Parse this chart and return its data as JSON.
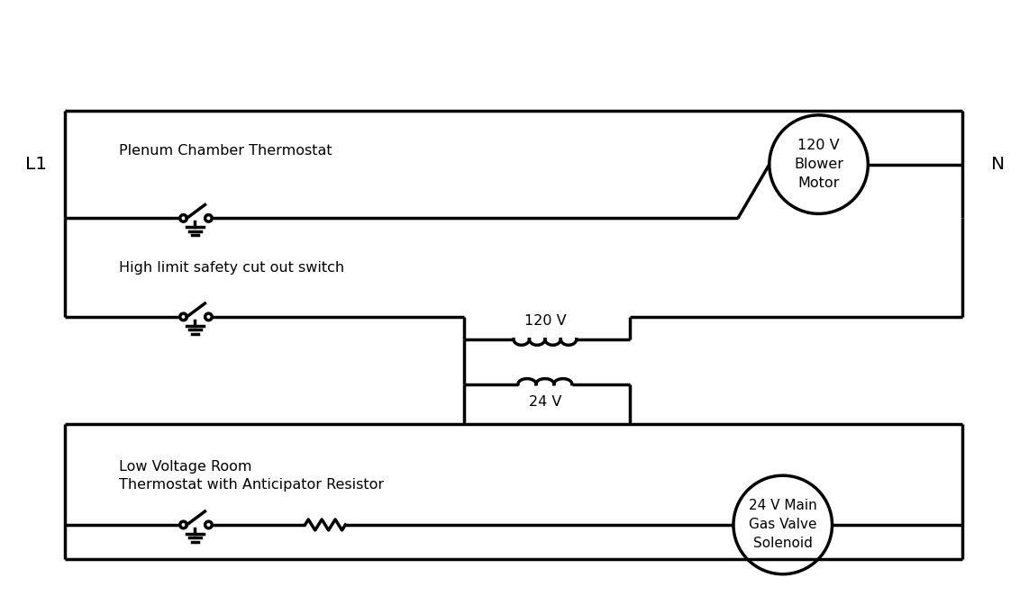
{
  "bg_color": "#ffffff",
  "line_color": "#000000",
  "line_width": 2.5,
  "fig_width": 11.42,
  "fig_height": 6.62,
  "labels": {
    "L1": "L1",
    "N": "N",
    "plenum": "Plenum Chamber Thermostat",
    "high_limit": "High limit safety cut out switch",
    "low_voltage": "Low Voltage Room\nThermostat with Anticipator Resistor",
    "blower_motor": "120 V\nBlower\nMotor",
    "gas_valve": "24 V Main\nGas Valve\nSolenoid",
    "transformer_120": "120 V",
    "transformer_24": "24 V"
  }
}
